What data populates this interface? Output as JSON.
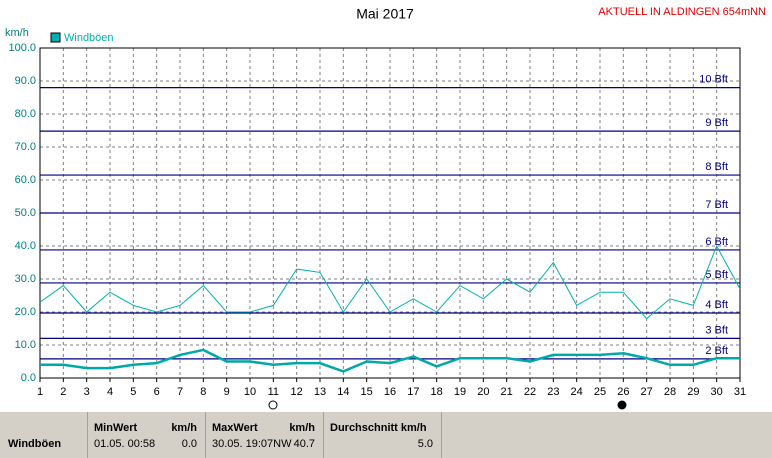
{
  "chart_data": {
    "type": "line",
    "title": "Mai 2017",
    "subtitle": "AKTUELL IN ALDINGEN 654mNN",
    "y_label": "km/h",
    "x": [
      1,
      2,
      3,
      4,
      5,
      6,
      7,
      8,
      9,
      10,
      11,
      12,
      13,
      14,
      15,
      16,
      17,
      18,
      19,
      20,
      21,
      22,
      23,
      24,
      25,
      26,
      27,
      28,
      29,
      30,
      31
    ],
    "xlim": [
      1,
      31
    ],
    "xticks": [
      1,
      2,
      3,
      4,
      5,
      6,
      7,
      8,
      9,
      10,
      11,
      12,
      13,
      14,
      15,
      16,
      17,
      18,
      19,
      20,
      21,
      22,
      23,
      24,
      25,
      26,
      27,
      28,
      29,
      30,
      31
    ],
    "ylim": [
      0,
      100
    ],
    "yticks": [
      {
        "value": 0,
        "label": "0.0"
      },
      {
        "value": 10,
        "label": "10.0"
      },
      {
        "value": 20,
        "label": "20.0"
      },
      {
        "value": 30,
        "label": "30.0"
      },
      {
        "value": 40,
        "label": "40.0"
      },
      {
        "value": 50,
        "label": "50.0"
      },
      {
        "value": 60,
        "label": "60.0"
      },
      {
        "value": 70,
        "label": "70.0"
      },
      {
        "value": 80,
        "label": "80.0"
      },
      {
        "value": 90,
        "label": "90.0"
      },
      {
        "value": 100,
        "label": "100.0"
      }
    ],
    "grid": true,
    "series": [
      {
        "name": "Windböen",
        "color": "#00b0b0",
        "values": [
          23,
          28,
          20,
          26,
          22,
          20,
          22,
          28,
          20,
          20,
          22,
          33,
          32,
          20,
          30,
          20,
          24,
          20,
          28,
          24,
          30,
          26,
          35,
          22,
          26,
          26,
          18,
          24,
          22,
          40,
          27
        ]
      },
      {
        "color": "#00a8a8",
        "values": [
          4,
          4,
          3,
          3,
          4,
          4.5,
          7,
          8.5,
          5,
          5,
          4,
          4.5,
          4.5,
          2,
          5,
          4.5,
          6.5,
          3.5,
          6,
          6,
          6,
          5,
          7,
          7,
          7,
          7.5,
          6,
          4,
          4,
          6,
          6
        ]
      }
    ],
    "reference_lines": [
      {
        "label": "2 Bft",
        "value": 5.8
      },
      {
        "label": "3 Bft",
        "value": 12
      },
      {
        "label": "4 Bft",
        "value": 19.7
      },
      {
        "label": "5 Bft",
        "value": 28.8
      },
      {
        "label": "6 Bft",
        "value": 38.8
      },
      {
        "label": "7 Bft",
        "value": 50
      },
      {
        "label": "8 Bft",
        "value": 61.5
      },
      {
        "label": "9 Bft",
        "value": 74.8
      },
      {
        "label": "10 Bft",
        "value": 88
      }
    ],
    "reference_color": "#000080"
  },
  "table": {
    "header": [
      "MinWert",
      "km/h",
      "MaxWert",
      "km/h",
      "Durchschnitt km/h"
    ],
    "rows": [
      [
        "Windböen",
        "01.05.  00:58",
        "0.0",
        "30.05. 19:07NW",
        "40.7",
        "5.0"
      ]
    ]
  }
}
